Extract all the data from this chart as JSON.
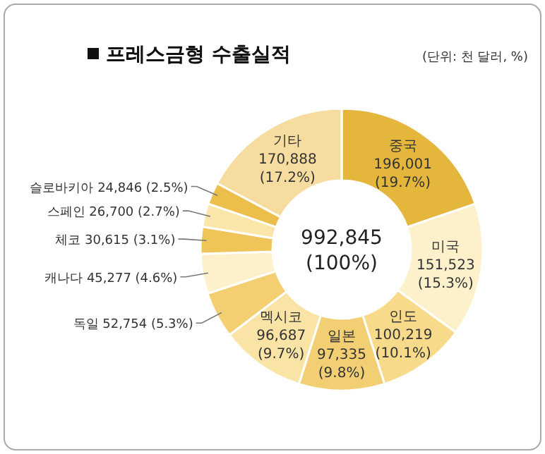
{
  "chart_data": {
    "type": "donut",
    "title": "프레스금형 수출실적",
    "subtitle": "(단위: 천 달러, %)",
    "categories": [
      "중국",
      "미국",
      "인도",
      "일본",
      "멕시코",
      "독일",
      "캐나다",
      "체코",
      "스페인",
      "슬로바키아",
      "기타"
    ],
    "values": [
      196001,
      151523,
      100219,
      97335,
      96687,
      52754,
      45277,
      30615,
      26700,
      24846,
      170888
    ],
    "value_labels": [
      "196,001 (19.7%)",
      "151,523 (15.3%)",
      "100,219 (10.1%)",
      "97,335 (9.8%)",
      "96,687 (9.7%)",
      "52,754 (5.3%)",
      "45,277 (4.6%)",
      "30,615 (3.1%)",
      "26,700 (2.7%)",
      "24,846 (2.5%)",
      "170,888 (17.2%)"
    ],
    "colors": [
      "#e4b73c",
      "#fdf1cc",
      "#f7da8a",
      "#f3cf74",
      "#f9e4a6",
      "#f4cf72",
      "#fdf1cc",
      "#efc459",
      "#fbe6a9",
      "#ecbf4c",
      "#f6dc9e"
    ],
    "annotations": [
      "992,845 (100%)"
    ]
  }
}
